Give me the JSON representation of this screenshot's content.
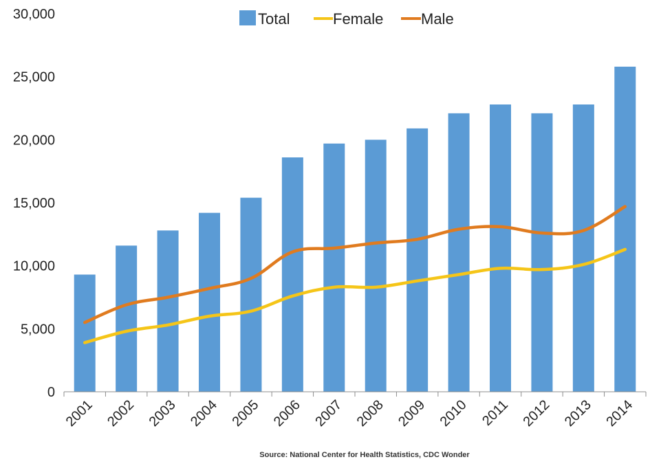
{
  "chart_data": {
    "type": "bar",
    "title": "",
    "xlabel": "",
    "ylabel": "",
    "categories": [
      "2001",
      "2002",
      "2003",
      "2004",
      "2005",
      "2006",
      "2007",
      "2008",
      "2009",
      "2010",
      "2011",
      "2012",
      "2013",
      "2014"
    ],
    "ylim": [
      0,
      30000
    ],
    "yticks": [
      0,
      5000,
      10000,
      15000,
      20000,
      25000,
      30000
    ],
    "ytick_labels": [
      "0",
      "5,000",
      "10,000",
      "15,000",
      "20,000",
      "25,000",
      "30,000"
    ],
    "grid": false,
    "legend_position": "top-center",
    "series": [
      {
        "name": "Total",
        "type": "bar",
        "color": "#5b9bd5",
        "values": [
          9300,
          11600,
          12800,
          14200,
          15400,
          18600,
          19700,
          20000,
          20900,
          22100,
          22800,
          22100,
          22800,
          25800
        ]
      },
      {
        "name": "Female",
        "type": "line",
        "color": "#f5c518",
        "values": [
          3900,
          4800,
          5300,
          6000,
          6400,
          7600,
          8300,
          8300,
          8800,
          9300,
          9800,
          9700,
          10100,
          11300
        ]
      },
      {
        "name": "Male",
        "type": "line",
        "color": "#e07b1f",
        "values": [
          5500,
          6900,
          7500,
          8200,
          9000,
          11100,
          11400,
          11800,
          12100,
          12900,
          13100,
          12600,
          12800,
          14700
        ]
      }
    ],
    "source": "Source: National Center for Health Statistics, CDC Wonder"
  }
}
